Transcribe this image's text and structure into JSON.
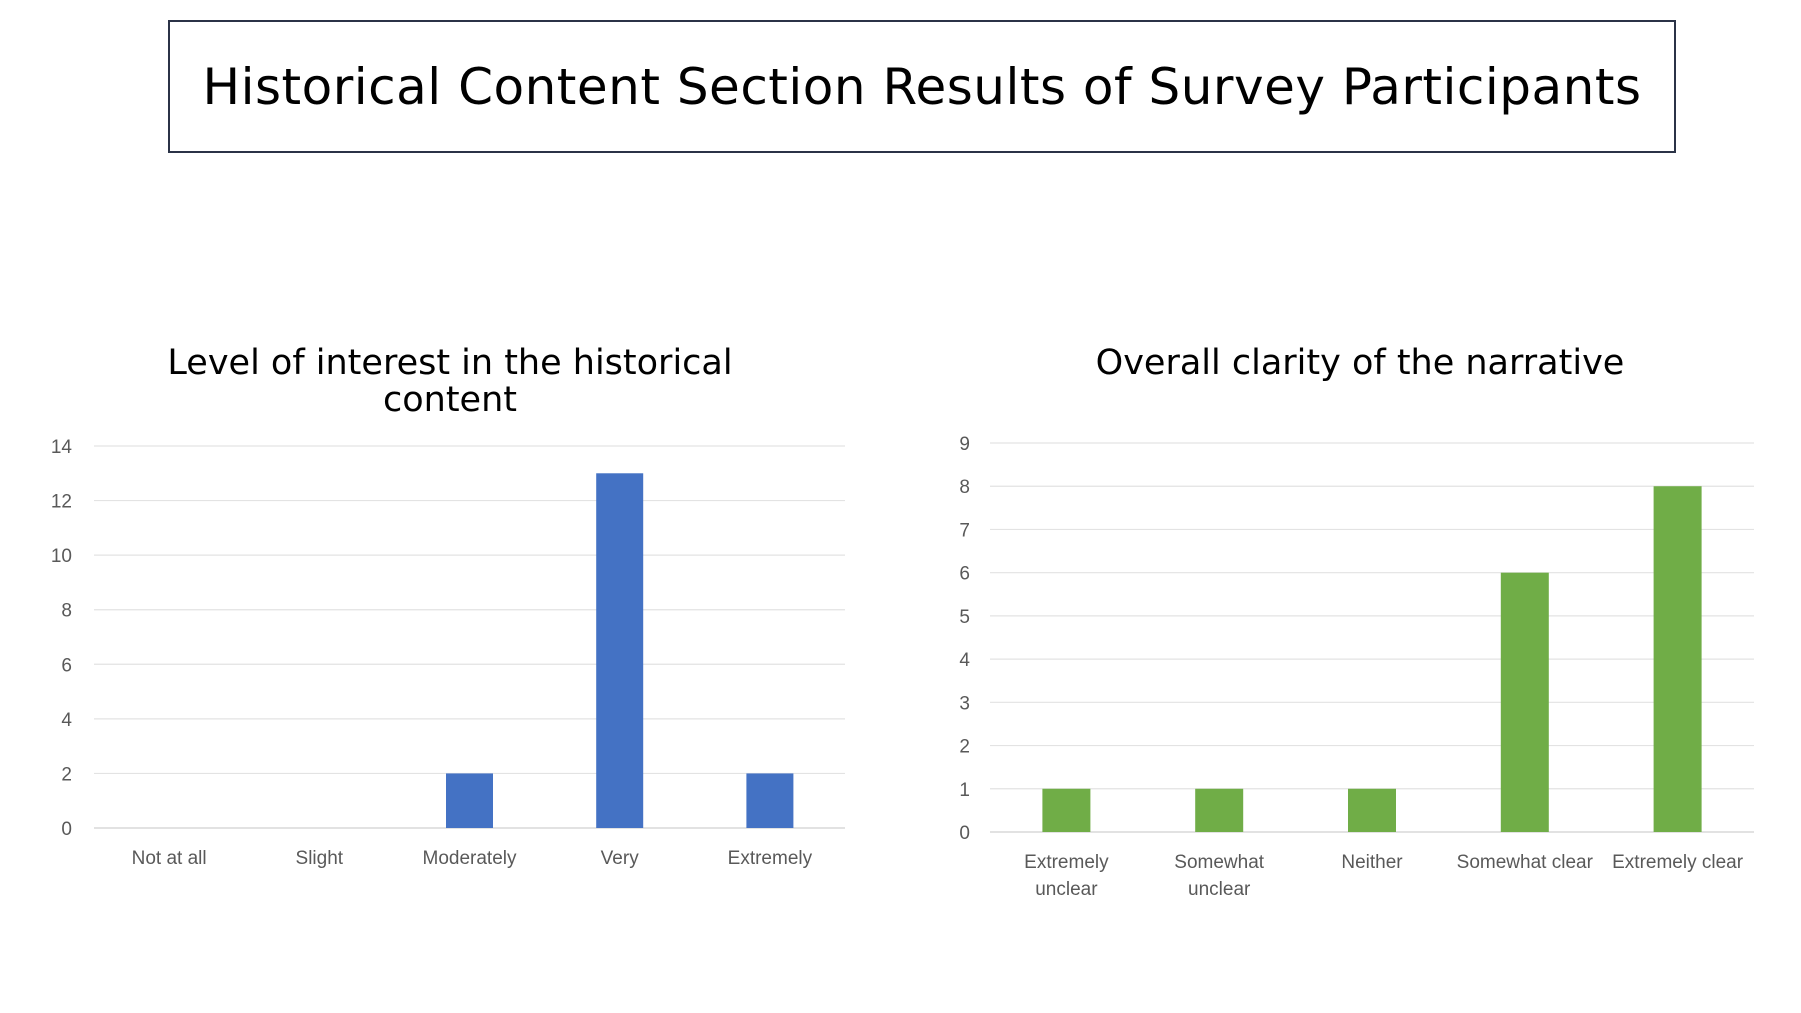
{
  "slide_title": "Historical Content Section Results of Survey Participants",
  "chart_data": [
    {
      "type": "bar",
      "title": "Level of interest in the historical content",
      "categories": [
        "Not at all",
        "Slight",
        "Moderately",
        "Very",
        "Extremely"
      ],
      "values": [
        0,
        0,
        2,
        13,
        2
      ],
      "ylim": [
        0,
        14
      ],
      "yticks": [
        0,
        2,
        4,
        6,
        8,
        10,
        12,
        14
      ],
      "xlabel": "",
      "ylabel": "",
      "grid": true,
      "legend": "none",
      "color": "#4472c4"
    },
    {
      "type": "bar",
      "title": "Overall clarity of the narrative",
      "categories": [
        "Extremely unclear",
        "Somewhat unclear",
        "Neither",
        "Somewhat clear",
        "Extremely clear"
      ],
      "values": [
        1,
        1,
        1,
        6,
        8
      ],
      "ylim": [
        0,
        9
      ],
      "yticks": [
        0,
        1,
        2,
        3,
        4,
        5,
        6,
        7,
        8,
        9
      ],
      "xlabel": "",
      "ylabel": "",
      "grid": true,
      "legend": "none",
      "color": "#70ad47"
    }
  ]
}
